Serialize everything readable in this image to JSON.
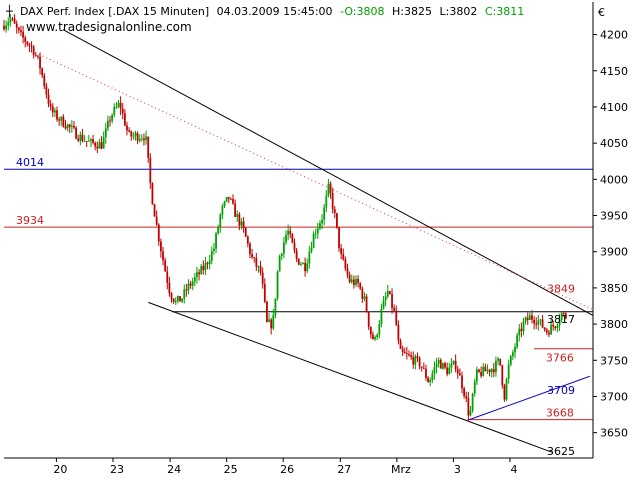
{
  "header": {
    "title": "DAX Perf. Index [.DAX  15 Minuten]",
    "datetime": "04.03.2009 15:45:00",
    "open": "-O:3808",
    "high": "H:3825",
    "low": "L:3802",
    "close": "C:3811"
  },
  "watermark": "www.tradesignalonline.com",
  "currency": "€",
  "colors": {
    "up": "#00a000",
    "down": "#c00000",
    "blue_line": "#0000c8",
    "red_line": "#d02020",
    "trend": "#000000",
    "dotted": "#e03030"
  },
  "chart_data": {
    "type": "candlestick",
    "y_range": [
      3615,
      4245
    ],
    "y_ticks": [
      3650,
      3700,
      3750,
      3800,
      3850,
      3900,
      3950,
      4000,
      4050,
      4100,
      4150,
      4200
    ],
    "x_range": [
      0,
      100
    ],
    "x_ticks": [
      {
        "label": "20",
        "x": 8.9
      },
      {
        "label": "23",
        "x": 18.5
      },
      {
        "label": "24",
        "x": 28.2
      },
      {
        "label": "25",
        "x": 37.8
      },
      {
        "label": "26",
        "x": 47.4
      },
      {
        "label": "27",
        "x": 57.1
      },
      {
        "label": "Mrz",
        "x": 66.7
      },
      {
        "label": "3",
        "x": 76.3
      },
      {
        "label": "4",
        "x": 85.9
      }
    ],
    "horizontal_levels": [
      {
        "label": "4014",
        "value": 4014,
        "color": "blue",
        "label_side": "left"
      },
      {
        "label": "3934",
        "value": 3934,
        "color": "red",
        "label_side": "left"
      },
      {
        "label": "3817",
        "value": 3817,
        "color": "black",
        "label_side": "right"
      },
      {
        "label": "3766",
        "value": 3766,
        "color": "red",
        "label_side": "right"
      },
      {
        "label": "3668",
        "value": 3668,
        "color": "red",
        "label_side": "right"
      }
    ],
    "level_labels": [
      {
        "label": "3849",
        "value": 3849,
        "color": "red"
      },
      {
        "label": "3709",
        "value": 3709,
        "color": "blue"
      },
      {
        "label": "3625",
        "value": 3625,
        "color": "black"
      }
    ],
    "trendlines": [
      {
        "style": "solid",
        "color": "black",
        "x1": 10,
        "y1": 4207,
        "x2": 100,
        "y2": 3812
      },
      {
        "style": "solid",
        "color": "black",
        "x1": 24.5,
        "y1": 3830,
        "x2": 93,
        "y2": 3623
      },
      {
        "style": "dotted",
        "color": "red",
        "x1": 5.3,
        "y1": 4175,
        "x2": 100,
        "y2": 3820
      },
      {
        "style": "solid",
        "color": "blue",
        "x1": 79,
        "y1": 3668,
        "x2": 99.5,
        "y2": 3728
      }
    ],
    "anchors": [
      [
        0,
        4212
      ],
      [
        1.5,
        4222
      ],
      [
        3,
        4200
      ],
      [
        5.3,
        4180
      ],
      [
        6.4,
        4158
      ],
      [
        8.3,
        4095
      ],
      [
        9.5,
        4085
      ],
      [
        11,
        4075
      ],
      [
        13,
        4060
      ],
      [
        15,
        4050
      ],
      [
        17,
        4048
      ],
      [
        18.5,
        4088
      ],
      [
        20,
        4105
      ],
      [
        21.5,
        4060
      ],
      [
        23,
        4060
      ],
      [
        24.4,
        4060
      ],
      [
        25.3,
        3985
      ],
      [
        26.5,
        3925
      ],
      [
        27.7,
        3875
      ],
      [
        28.5,
        3845
      ],
      [
        29.5,
        3830
      ],
      [
        30.5,
        3835
      ],
      [
        31.5,
        3850
      ],
      [
        33,
        3865
      ],
      [
        34.5,
        3880
      ],
      [
        36,
        3905
      ],
      [
        37.2,
        3955
      ],
      [
        38.5,
        3975
      ],
      [
        39.5,
        3955
      ],
      [
        41,
        3930
      ],
      [
        42.5,
        3890
      ],
      [
        44,
        3870
      ],
      [
        45,
        3800
      ],
      [
        46,
        3800
      ],
      [
        47,
        3890
      ],
      [
        48.5,
        3930
      ],
      [
        50,
        3890
      ],
      [
        51.5,
        3880
      ],
      [
        53,
        3925
      ],
      [
        54.5,
        3950
      ],
      [
        55.5,
        3990
      ],
      [
        56.5,
        3950
      ],
      [
        57.5,
        3895
      ],
      [
        59,
        3860
      ],
      [
        60.5,
        3855
      ],
      [
        61.7,
        3830
      ],
      [
        62.5,
        3790
      ],
      [
        63.3,
        3775
      ],
      [
        64.5,
        3820
      ],
      [
        65.5,
        3845
      ],
      [
        66.8,
        3810
      ],
      [
        67.5,
        3760
      ],
      [
        69,
        3755
      ],
      [
        71,
        3745
      ],
      [
        72.5,
        3720
      ],
      [
        74,
        3750
      ],
      [
        75.5,
        3735
      ],
      [
        77,
        3745
      ],
      [
        78,
        3720
      ],
      [
        78.7,
        3700
      ],
      [
        79.4,
        3670
      ],
      [
        80.5,
        3730
      ],
      [
        82,
        3735
      ],
      [
        83.5,
        3740
      ],
      [
        84.5,
        3750
      ],
      [
        85.3,
        3700
      ],
      [
        86,
        3740
      ],
      [
        87.5,
        3780
      ],
      [
        88.5,
        3800
      ],
      [
        89.7,
        3810
      ],
      [
        91,
        3805
      ],
      [
        92.5,
        3790
      ],
      [
        94,
        3800
      ],
      [
        95,
        3815
      ],
      [
        95.5,
        3811
      ]
    ]
  }
}
